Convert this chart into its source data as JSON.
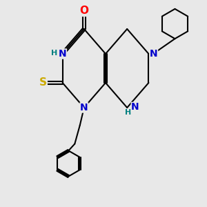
{
  "bg_color": "#e8e8e8",
  "bond_color": "#000000",
  "bond_width": 1.5,
  "atom_colors": {
    "N": "#0000cc",
    "O": "#ff0000",
    "S": "#ccaa00",
    "NH": "#008080",
    "C": "#000000"
  },
  "font_size": 10,
  "font_size_H": 8
}
